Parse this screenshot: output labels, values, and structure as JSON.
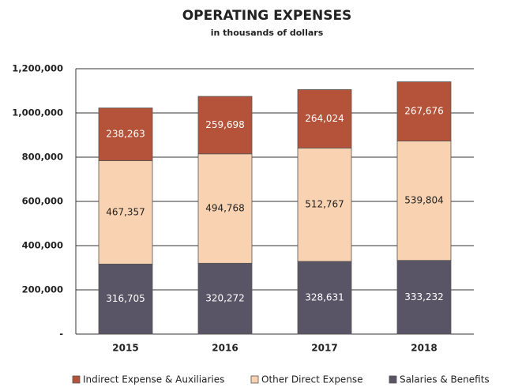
{
  "chart_data": {
    "type": "stacked_bar",
    "title": "OPERATING EXPENSES",
    "subtitle": "in thousands of dollars",
    "categories": [
      "2015",
      "2016",
      "2017",
      "2018"
    ],
    "series": [
      {
        "name": "Indirect Expense & Auxiliaries",
        "color": "#b5533a",
        "values": [
          238263,
          259698,
          264024,
          267676
        ],
        "value_labels": [
          "238,263",
          "259,698",
          "264,024",
          "267,676"
        ]
      },
      {
        "name": "Other Direct Expense",
        "color": "#f9d3b1",
        "values": [
          467357,
          494768,
          512767,
          539804
        ],
        "value_labels": [
          "467,357",
          "494,768",
          "512,767",
          "539,804"
        ]
      },
      {
        "name": "Salaries & Benefits",
        "color": "#5a5566",
        "values": [
          316705,
          320272,
          328631,
          333232
        ],
        "value_labels": [
          "316,705",
          "320,272",
          "328,631",
          "333,232"
        ]
      }
    ],
    "ylim": [
      0,
      1200000
    ],
    "yticks": [
      {
        "value": 0,
        "label": "-"
      },
      {
        "value": 200000,
        "label": "200,000"
      },
      {
        "value": 400000,
        "label": "400,000"
      },
      {
        "value": 600000,
        "label": "600,000"
      },
      {
        "value": 800000,
        "label": "800,000"
      },
      {
        "value": 1000000,
        "label": "1,000,000"
      },
      {
        "value": 1200000,
        "label": "1,200,000"
      }
    ],
    "grid": true,
    "legend": "bottom"
  }
}
